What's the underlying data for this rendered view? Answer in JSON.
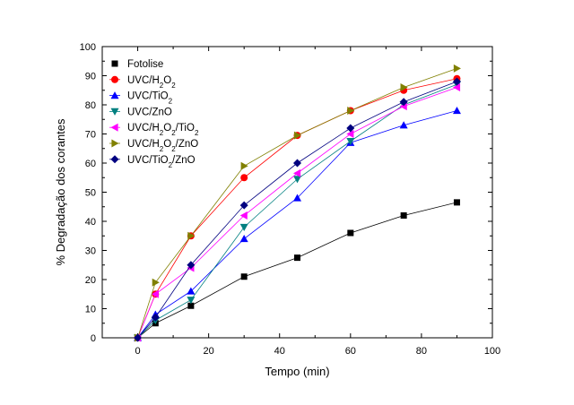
{
  "chart_data": {
    "type": "line",
    "title": "",
    "xlabel": "Tempo (min)",
    "ylabel": "% Degradação dos corantes",
    "xlim": [
      -10,
      100
    ],
    "ylim": [
      0,
      100
    ],
    "xticks": [
      0,
      20,
      40,
      60,
      80,
      100
    ],
    "yticks": [
      0,
      10,
      20,
      30,
      40,
      50,
      60,
      70,
      80,
      90,
      100
    ],
    "grid": false,
    "legend_position": "top-left",
    "x": [
      0,
      5,
      15,
      30,
      45,
      60,
      75,
      90
    ],
    "series": [
      {
        "name": "Fotolise",
        "legend_parts": [
          {
            "t": "Fotolise"
          }
        ],
        "marker": "square",
        "color": "#000000",
        "line_color": "#000000",
        "values": [
          0,
          5,
          11,
          21,
          27.5,
          36,
          42,
          46.5
        ]
      },
      {
        "name": "UVC/H2O2",
        "legend_parts": [
          {
            "t": "UVC/H"
          },
          {
            "t": "2",
            "sub": true
          },
          {
            "t": "O"
          },
          {
            "t": "2",
            "sub": true
          }
        ],
        "marker": "circle",
        "color": "#ff0000",
        "line_color": "#ff0000",
        "values": [
          0,
          15,
          35,
          55,
          69.5,
          78,
          85,
          89
        ]
      },
      {
        "name": "UVC/TiO2",
        "legend_parts": [
          {
            "t": "UVC/TiO"
          },
          {
            "t": "2",
            "sub": true
          }
        ],
        "marker": "triangle-up",
        "color": "#0000ff",
        "line_color": "#0000ff",
        "values": [
          0,
          8,
          16,
          34,
          48,
          67,
          73,
          78
        ]
      },
      {
        "name": "UVC/ZnO",
        "legend_parts": [
          {
            "t": "UVC/ZnO"
          }
        ],
        "marker": "triangle-down",
        "color": "#008080",
        "line_color": "#008080",
        "values": [
          0,
          6,
          13,
          38,
          54.5,
          67.5,
          80,
          87
        ]
      },
      {
        "name": "UVC/H2O2/TiO2",
        "legend_parts": [
          {
            "t": "UVC/H"
          },
          {
            "t": "2",
            "sub": true
          },
          {
            "t": "O"
          },
          {
            "t": "2",
            "sub": true
          },
          {
            "t": "/TiO"
          },
          {
            "t": "2",
            "sub": true
          }
        ],
        "marker": "triangle-left",
        "color": "#ff00ff",
        "line_color": "#ff00ff",
        "values": [
          0,
          15,
          24,
          42,
          56.5,
          70,
          79.5,
          86
        ]
      },
      {
        "name": "UVC/H2O2/ZnO",
        "legend_parts": [
          {
            "t": "UVC/H"
          },
          {
            "t": "2",
            "sub": true
          },
          {
            "t": "O"
          },
          {
            "t": "2",
            "sub": true
          },
          {
            "t": "/ZnO"
          }
        ],
        "marker": "triangle-right",
        "color": "#808000",
        "line_color": "#808000",
        "values": [
          0,
          19,
          35,
          59,
          69.5,
          78,
          86,
          92.5
        ]
      },
      {
        "name": "UVC/TiO2/ZnO",
        "legend_parts": [
          {
            "t": "UVC/TiO"
          },
          {
            "t": "2",
            "sub": true
          },
          {
            "t": "/ZnO"
          }
        ],
        "marker": "diamond",
        "color": "#000080",
        "line_color": "#000080",
        "values": [
          0,
          7,
          25,
          45.5,
          60,
          72,
          81,
          88
        ]
      }
    ]
  }
}
